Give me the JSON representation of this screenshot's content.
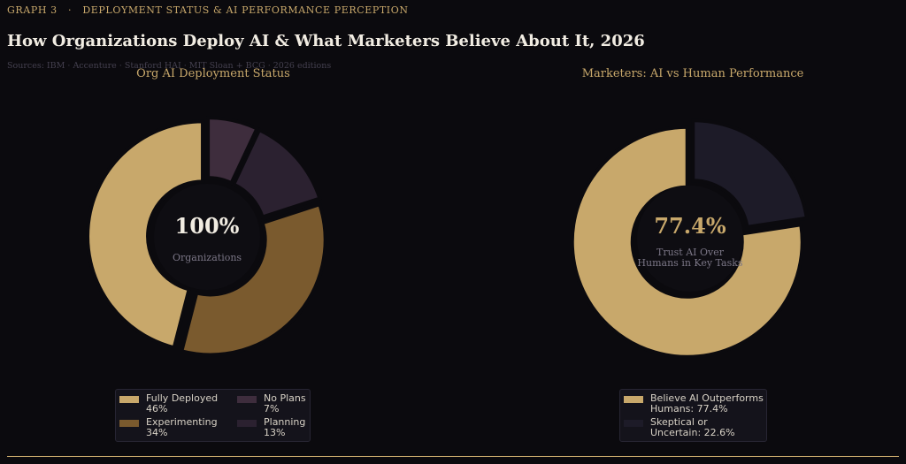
{
  "header": {
    "eyebrow": "GRAPH 3   ·   DEPLOYMENT STATUS & AI PERFORMANCE PERCEPTION",
    "title": "How Organizations Deploy AI & What Marketers Believe About It, 2026",
    "sources": "Sources: IBM · Accenture · Stanford HAI · MIT Sloan + BCG · 2026 editions"
  },
  "chart_data": [
    {
      "type": "pie",
      "title": "Org AI Deployment Status",
      "center_value": "100%",
      "center_label": "Organizations",
      "slices": [
        {
          "name": "Fully Deployed",
          "value": 46,
          "label": "46%",
          "color": "#c8a86b"
        },
        {
          "name": "Experimenting",
          "value": 34,
          "label": "34%",
          "color": "#7a5a2e"
        },
        {
          "name": "Planning",
          "value": 13,
          "label": "13%",
          "color": "#2b2130"
        },
        {
          "name": "No Plans",
          "value": 7,
          "label": "7%",
          "color": "#3e2d3d"
        }
      ],
      "legend": [
        {
          "line1": "Fully Deployed",
          "line2": "46%",
          "color": "#c8a86b"
        },
        {
          "line1": "Experimenting",
          "line2": "34%",
          "color": "#7a5a2e"
        },
        {
          "line1": "No Plans",
          "line2": "7%",
          "color": "#3e2d3d"
        },
        {
          "line1": "Planning",
          "line2": "13%",
          "color": "#2b2130"
        }
      ],
      "legend_placement": "bottom"
    },
    {
      "type": "pie",
      "title": "Marketers: AI vs Human Performance",
      "center_value": "77.4%",
      "center_label_lines": [
        "Trust AI Over",
        "Humans in Key Tasks"
      ],
      "slices": [
        {
          "name": "Believe AI Outperforms Humans",
          "value": 77.4,
          "color": "#c8a86b"
        },
        {
          "name": "Skeptical or Uncertain",
          "value": 22.6,
          "color": "#1d1b28"
        }
      ],
      "legend": [
        {
          "line1": "Believe AI Outperforms",
          "line2": "Humans: 77.4%",
          "color": "#c8a86b"
        },
        {
          "line1": "Skeptical or",
          "line2": "Uncertain: 22.6%",
          "color": "#1d1b28"
        }
      ],
      "legend_placement": "bottom"
    }
  ],
  "colors": {
    "background": "#0b0a0e",
    "accent": "#c8a86b",
    "center_fill": "#0e0d12",
    "title": "#f1ece2",
    "muted": "#7a7585"
  }
}
